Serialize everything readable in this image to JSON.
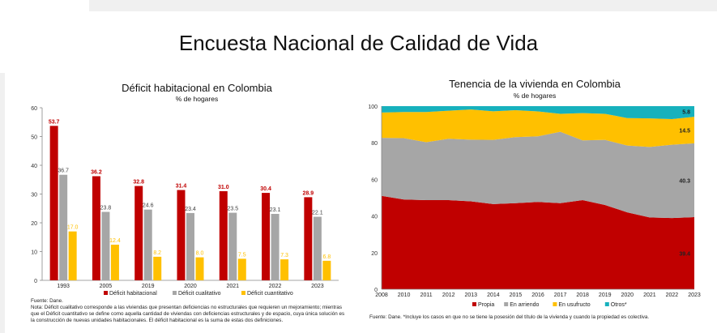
{
  "page": {
    "title": "Encuesta Nacional de Calidad de Vida"
  },
  "chart_data": [
    {
      "type": "bar",
      "title": "Déficit habitacional en Colombia",
      "subtitle": "% de hogares",
      "categories": [
        "1993",
        "2005",
        "2019",
        "2020",
        "2021",
        "2022",
        "2023"
      ],
      "series": [
        {
          "name": "Déficit habitacional",
          "color": "#c00000",
          "label_color": "#c00000",
          "values": [
            53.7,
            36.2,
            32.8,
            31.4,
            31.0,
            30.4,
            28.9
          ]
        },
        {
          "name": "Déficit cualitativo",
          "color": "#a6a6a6",
          "label_color": "#404040",
          "values": [
            36.7,
            23.8,
            24.6,
            23.4,
            23.5,
            23.1,
            22.1
          ]
        },
        {
          "name": "Déficit cuantitativo",
          "color": "#ffc000",
          "label_color": "#ffc000",
          "values": [
            17.0,
            12.4,
            8.2,
            8.0,
            7.5,
            7.3,
            6.8
          ]
        }
      ],
      "ylim": [
        0,
        60
      ],
      "yticks": [
        0,
        10,
        20,
        30,
        40,
        50,
        60
      ],
      "legend": "bottom",
      "grid": false,
      "source": "Fuente: Dane.",
      "note": "Nota: Déficit cualitativo corresponde a las viviendas que presentan deficiencias no estructurales que requieren un mejoramiento; mientras que el Déficit cuantitativo se define como aquella cantidad de viviendas con deficiencias estructurales y de espacio, cuya única solución es la construcción de nuevas unidades habitacionales. El déficit habitacional es la suma de estas dos definiciones."
    },
    {
      "type": "area",
      "stacked": true,
      "title": "Tenencia de la vivienda en Colombia",
      "subtitle": "% de hogares",
      "categories": [
        "2008",
        "2010",
        "2011",
        "2012",
        "2013",
        "2014",
        "2015",
        "2016",
        "2017",
        "2018",
        "2019",
        "2020",
        "2021",
        "2022",
        "2023"
      ],
      "series": [
        {
          "name": "Propia",
          "color": "#c00000",
          "values": [
            51.0,
            49.0,
            48.7,
            48.7,
            48.0,
            46.5,
            47.0,
            47.7,
            47.0,
            48.7,
            46.0,
            42.0,
            39.2,
            38.9,
            39.4
          ]
        },
        {
          "name": "En arriendo",
          "color": "#a6a6a6",
          "values": [
            31.7,
            33.5,
            31.6,
            33.5,
            33.7,
            35.1,
            36.1,
            35.8,
            39.0,
            32.6,
            35.6,
            36.5,
            38.5,
            40.0,
            40.3
          ]
        },
        {
          "name": "En usufructo",
          "color": "#ffc000",
          "values": [
            13.8,
            14.3,
            16.5,
            15.3,
            16.5,
            15.6,
            14.7,
            13.6,
            9.8,
            14.9,
            14.2,
            15.0,
            15.6,
            14.0,
            14.5
          ]
        },
        {
          "name": "Otros*",
          "color": "#17b1bd",
          "values": [
            3.5,
            3.2,
            3.2,
            2.5,
            1.8,
            2.8,
            2.2,
            2.9,
            4.2,
            3.8,
            4.2,
            6.5,
            6.7,
            7.1,
            5.8
          ]
        }
      ],
      "end_labels": [
        "39.4",
        "40.3",
        "14.5",
        "5.8"
      ],
      "ylim": [
        0,
        100
      ],
      "yticks": [
        0,
        20,
        40,
        60,
        80,
        100
      ],
      "legend": "bottom",
      "grid": false,
      "source": "Fuente: Dane. *Incluye los casos en que no se tiene la posesión del título de la vivienda y cuando la propiedad es colectiva."
    }
  ]
}
